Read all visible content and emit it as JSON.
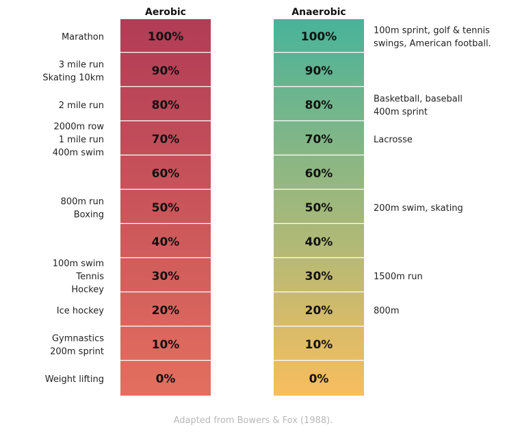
{
  "chart_data": {
    "type": "table",
    "columns": [
      {
        "title": "Aerobic",
        "color_top": "#b13c56",
        "color_bottom": "#e36f5f",
        "levels": [
          "100%",
          "90%",
          "80%",
          "70%",
          "60%",
          "50%",
          "40%",
          "30%",
          "20%",
          "10%",
          "0%"
        ],
        "labels": [
          [
            "Marathon"
          ],
          [
            "3 mile run",
            "Skating 10km"
          ],
          [
            "2 mile run"
          ],
          [
            "2000m row",
            "1 mile run",
            "400m swim"
          ],
          [],
          [
            "800m run",
            "Boxing"
          ],
          [],
          [
            "100m swim",
            "Tennis",
            "Hockey"
          ],
          [
            "Ice hockey"
          ],
          [
            "Gymnastics",
            "200m sprint"
          ],
          [
            "Weight lifting"
          ]
        ]
      },
      {
        "title": "Anaerobic",
        "color_top": "#48b39a",
        "color_bottom": "#f8bd5e",
        "levels": [
          "100%",
          "90%",
          "80%",
          "70%",
          "60%",
          "50%",
          "40%",
          "30%",
          "20%",
          "10%",
          "0%"
        ],
        "labels": [
          [
            "100m sprint, golf & tennis",
            "swings, American football."
          ],
          [],
          [
            "Basketball, baseball",
            "400m sprint"
          ],
          [
            "Lacrosse"
          ],
          [],
          [
            "200m swim, skating"
          ],
          [],
          [
            "1500m run"
          ],
          [
            "800m"
          ],
          [],
          []
        ]
      }
    ],
    "caption": "Adapted from Bowers & Fox (1988)."
  }
}
